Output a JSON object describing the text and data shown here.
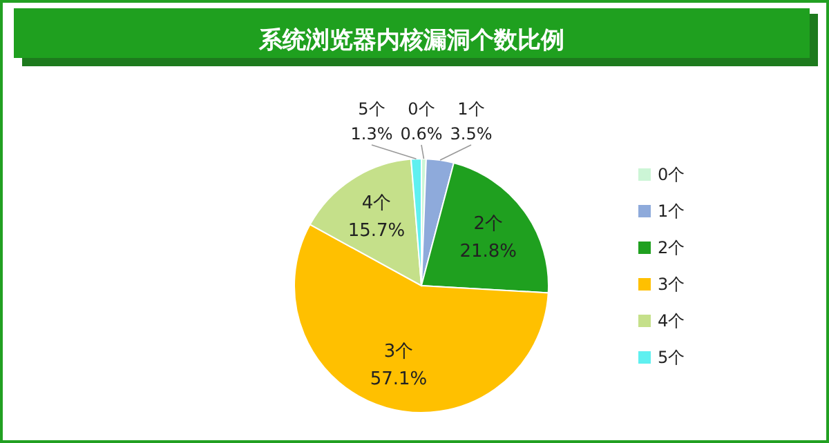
{
  "chart_data": {
    "type": "pie",
    "title": "系统浏览器内核漏洞个数比例",
    "categories": [
      "0个",
      "1个",
      "2个",
      "3个",
      "4个",
      "5个"
    ],
    "values": [
      0.6,
      3.5,
      21.8,
      57.1,
      15.7,
      1.3
    ],
    "colors": [
      "#ccf5d6",
      "#8eaadb",
      "#1fa01f",
      "#ffc000",
      "#c5e08a",
      "#5ff0f0"
    ],
    "value_labels": [
      "0.6%",
      "3.5%",
      "21.8%",
      "57.1%",
      "15.7%",
      "1.3%"
    ],
    "legend": "right"
  }
}
